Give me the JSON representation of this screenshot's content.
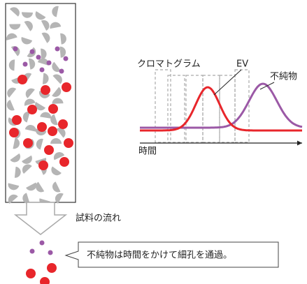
{
  "chromatogram": {
    "label": "クロマトグラム",
    "ev_label": "EV",
    "impurity_label": "不純物",
    "time_axis_label": "時間"
  },
  "flow": {
    "label": "試料の流れ"
  },
  "callout": {
    "text": "不純物は時間をかけて細孔を通過。"
  }
}
